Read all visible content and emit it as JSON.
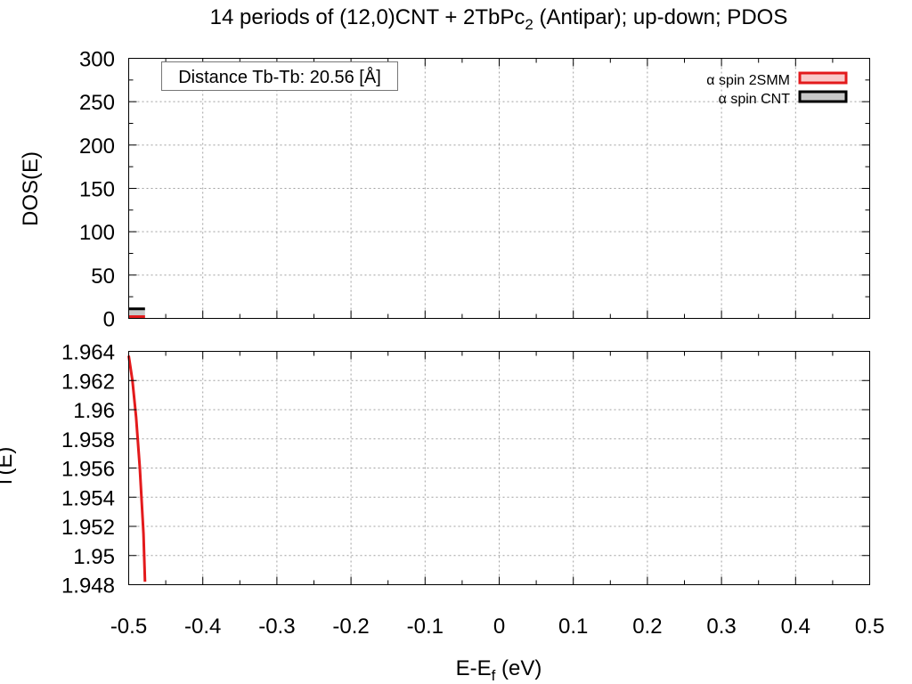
{
  "chart_data": [
    {
      "type": "area",
      "panel": "top",
      "title_main": "14 periods of (12,0)CNT + 2TbPc",
      "title_sub": "2",
      "title_rest": " (Antipar); up-down; PDOS",
      "ylabel": "DOS(E)",
      "xlim": [
        -0.5,
        0.5
      ],
      "ylim": [
        0,
        300
      ],
      "y_ticks": [
        0,
        50,
        100,
        150,
        200,
        250,
        300
      ],
      "y_tick_labels": [
        "0",
        "50",
        "100",
        "150",
        "200",
        "250",
        "300"
      ],
      "annotation": "Distance Tb-Tb: 20.56 [Å]",
      "grid": true,
      "legend_position": "top-right",
      "series": [
        {
          "name": "α spin 2SMM",
          "color": "#e31a1c",
          "fill": "#f9c9c9",
          "x": [
            -0.5,
            -0.478
          ],
          "y": [
            2,
            2
          ]
        },
        {
          "name": "α spin CNT",
          "color": "#000000",
          "fill": "#c8c8c8",
          "x": [
            -0.5,
            -0.478
          ],
          "y": [
            11,
            11
          ]
        }
      ]
    },
    {
      "type": "line",
      "panel": "bottom",
      "ylabel": "T(E)",
      "xlabel_main": "E-E",
      "xlabel_sub": "f",
      "xlabel_rest": " (eV)",
      "xlim": [
        -0.5,
        0.5
      ],
      "ylim": [
        1.948,
        1.964
      ],
      "x_ticks": [
        -0.5,
        -0.4,
        -0.3,
        -0.2,
        -0.1,
        0,
        0.1,
        0.2,
        0.3,
        0.4,
        0.5
      ],
      "x_tick_labels": [
        "-0.5",
        "-0.4",
        "-0.3",
        "-0.2",
        "-0.1",
        "0",
        "0.1",
        "0.2",
        "0.3",
        "0.4",
        "0.5"
      ],
      "y_ticks": [
        1.948,
        1.95,
        1.952,
        1.954,
        1.956,
        1.958,
        1.96,
        1.962,
        1.964
      ],
      "y_tick_labels": [
        "1.948",
        "1.95",
        "1.952",
        "1.954",
        "1.956",
        "1.958",
        "1.96",
        "1.962",
        "1.964"
      ],
      "grid": true,
      "series": [
        {
          "color": "#e31a1c",
          "x": [
            -0.5,
            -0.495,
            -0.49,
            -0.485,
            -0.48,
            -0.478
          ],
          "y": [
            1.9637,
            1.962,
            1.9595,
            1.956,
            1.9515,
            1.9482
          ]
        }
      ]
    }
  ]
}
